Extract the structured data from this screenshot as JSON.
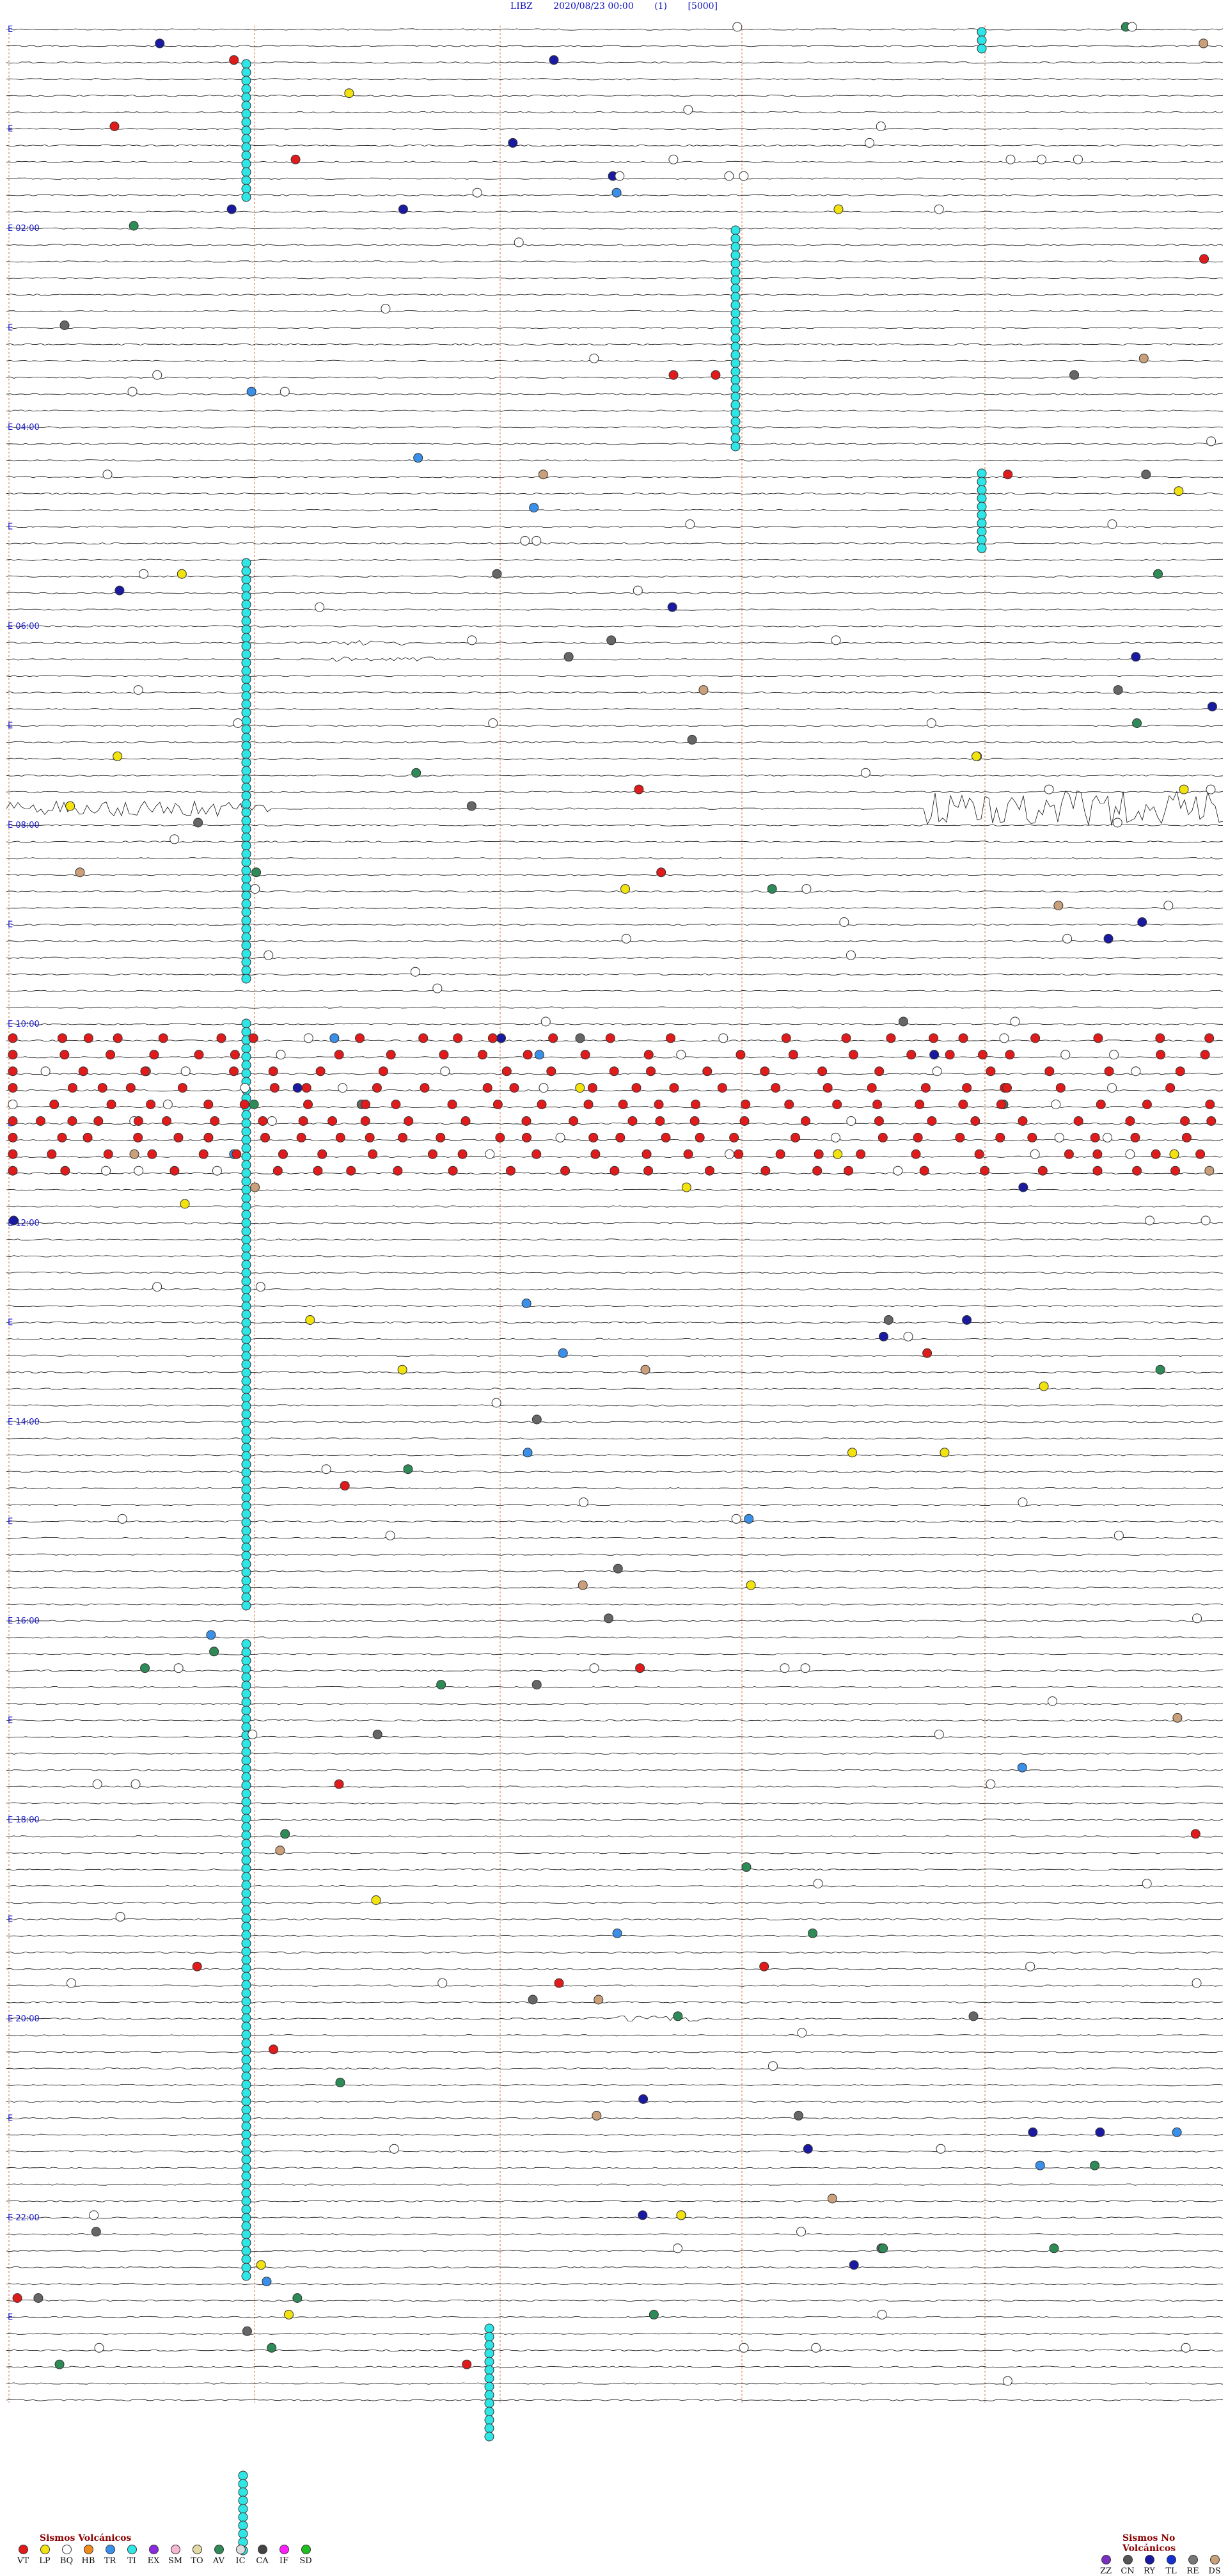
{
  "header": {
    "station": "LIBZ",
    "datetime": "2020/08/23 00:00",
    "channel": "(1)",
    "scale": "[5000]"
  },
  "hour_labels": [
    {
      "hour": 0,
      "text": ""
    },
    {
      "hour": 1,
      "text": ""
    },
    {
      "hour": 2,
      "text": "02:00"
    },
    {
      "hour": 3,
      "text": ""
    },
    {
      "hour": 4,
      "text": "04:00"
    },
    {
      "hour": 5,
      "text": ""
    },
    {
      "hour": 6,
      "text": "06:00"
    },
    {
      "hour": 7,
      "text": ""
    },
    {
      "hour": 8,
      "text": "08:00"
    },
    {
      "hour": 9,
      "text": ""
    },
    {
      "hour": 10,
      "text": "10:00"
    },
    {
      "hour": 11,
      "text": ""
    },
    {
      "hour": 12,
      "text": "12:00"
    },
    {
      "hour": 13,
      "text": ""
    },
    {
      "hour": 14,
      "text": "14:00"
    },
    {
      "hour": 15,
      "text": ""
    },
    {
      "hour": 16,
      "text": "16:00"
    },
    {
      "hour": 17,
      "text": ""
    },
    {
      "hour": 18,
      "text": "18:00"
    },
    {
      "hour": 19,
      "text": ""
    },
    {
      "hour": 20,
      "text": "20:00"
    },
    {
      "hour": 21,
      "text": ""
    },
    {
      "hour": 22,
      "text": "22:00"
    },
    {
      "hour": 23,
      "text": ""
    }
  ],
  "colors": {
    "trace": "#111111",
    "minute_marker": "#e08a5c",
    "hour_label": "#1a1ad0",
    "header_text": "#1010c0",
    "legend_title": "#8b0000"
  },
  "legend_volcanic": {
    "title": "Sismos Volcánicos",
    "items": [
      {
        "code": "VT",
        "color": "#e01b1b"
      },
      {
        "code": "LP",
        "color": "#f2e20e"
      },
      {
        "code": "BQ",
        "color": "#ffffff"
      },
      {
        "code": "HB",
        "color": "#f08a1c"
      },
      {
        "code": "TR",
        "color": "#3a8fe8"
      },
      {
        "code": "TI",
        "color": "#2ee6e6"
      },
      {
        "code": "EX",
        "color": "#8a2be2"
      },
      {
        "code": "SM",
        "color": "#f7b6d2"
      },
      {
        "code": "TO",
        "color": "#e3d9a3"
      },
      {
        "code": "AV",
        "color": "#2e8b57"
      },
      {
        "code": "IC",
        "color": "#dddddd"
      },
      {
        "code": "CA",
        "color": "#444444"
      },
      {
        "code": "IF",
        "color": "#ff20ff"
      },
      {
        "code": "SD",
        "color": "#1fbf1f"
      }
    ]
  },
  "legend_nonvolcanic": {
    "title": "Sismos No Volcánicos",
    "items": [
      {
        "code": "ZZ",
        "color": "#7a2fbf"
      },
      {
        "code": "CN",
        "color": "#555555"
      },
      {
        "code": "RY",
        "color": "#1a1aa0"
      },
      {
        "code": "TL",
        "color": "#1530d0"
      },
      {
        "code": "RE",
        "color": "#777777"
      },
      {
        "code": "DS",
        "color": "#c9a07a"
      }
    ]
  },
  "event_types": {
    "VT": "#e01b1b",
    "LP": "#f2e20e",
    "TR": "#3a8fe8",
    "TI": "#2ee6e6",
    "AV": "#2e8b57",
    "IC": "#ffffff",
    "CA": "#666666",
    "RY": "#1a1aa0",
    "DS": "#c9a07a"
  }
}
